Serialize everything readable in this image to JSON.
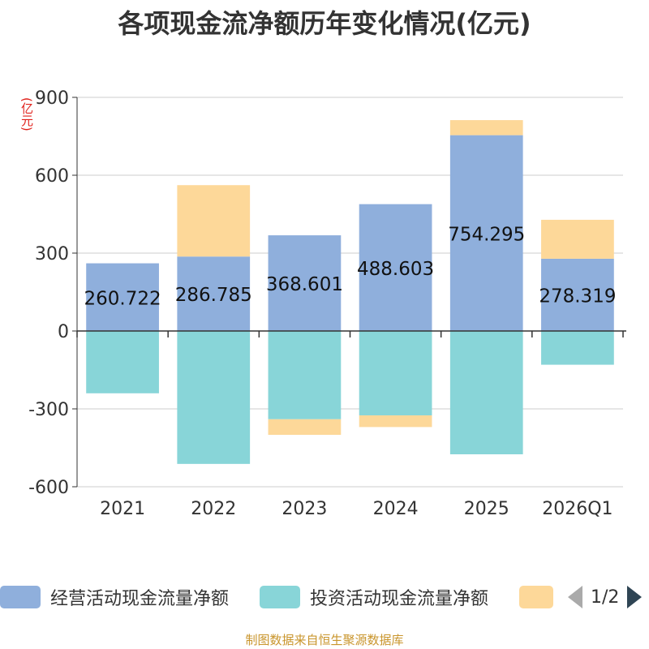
{
  "chart_data": {
    "type": "bar",
    "stacked": true,
    "title": "各项现金流净额历年变化情况(亿元)",
    "ylabel": "(亿元)",
    "categories": [
      "2021",
      "2022",
      "2023",
      "2024",
      "2025",
      "2026Q1"
    ],
    "ylim": [
      -600,
      900
    ],
    "yticks": [
      900,
      600,
      300,
      0,
      -300,
      -600
    ],
    "grid": true,
    "series": [
      {
        "name": "经营活动现金流量净额",
        "color": "#8fafdc",
        "values": [
          260.722,
          286.785,
          368.601,
          488.603,
          754.295,
          278.319
        ],
        "labels": [
          "260.722",
          "286.785",
          "368.601",
          "488.603",
          "754.295",
          "278.319"
        ]
      },
      {
        "name": "投资活动现金流量净额",
        "color": "#88d5d8",
        "values": [
          -240,
          -512,
          -340,
          -325,
          -475,
          -130
        ]
      },
      {
        "name": "",
        "color": "#fdd899",
        "values": [
          0,
          275,
          -60,
          -45,
          58,
          150
        ]
      }
    ],
    "legend_placement": "bottom",
    "legend_page": "1/2"
  },
  "source": "制图数据来自恒生聚源数据库"
}
